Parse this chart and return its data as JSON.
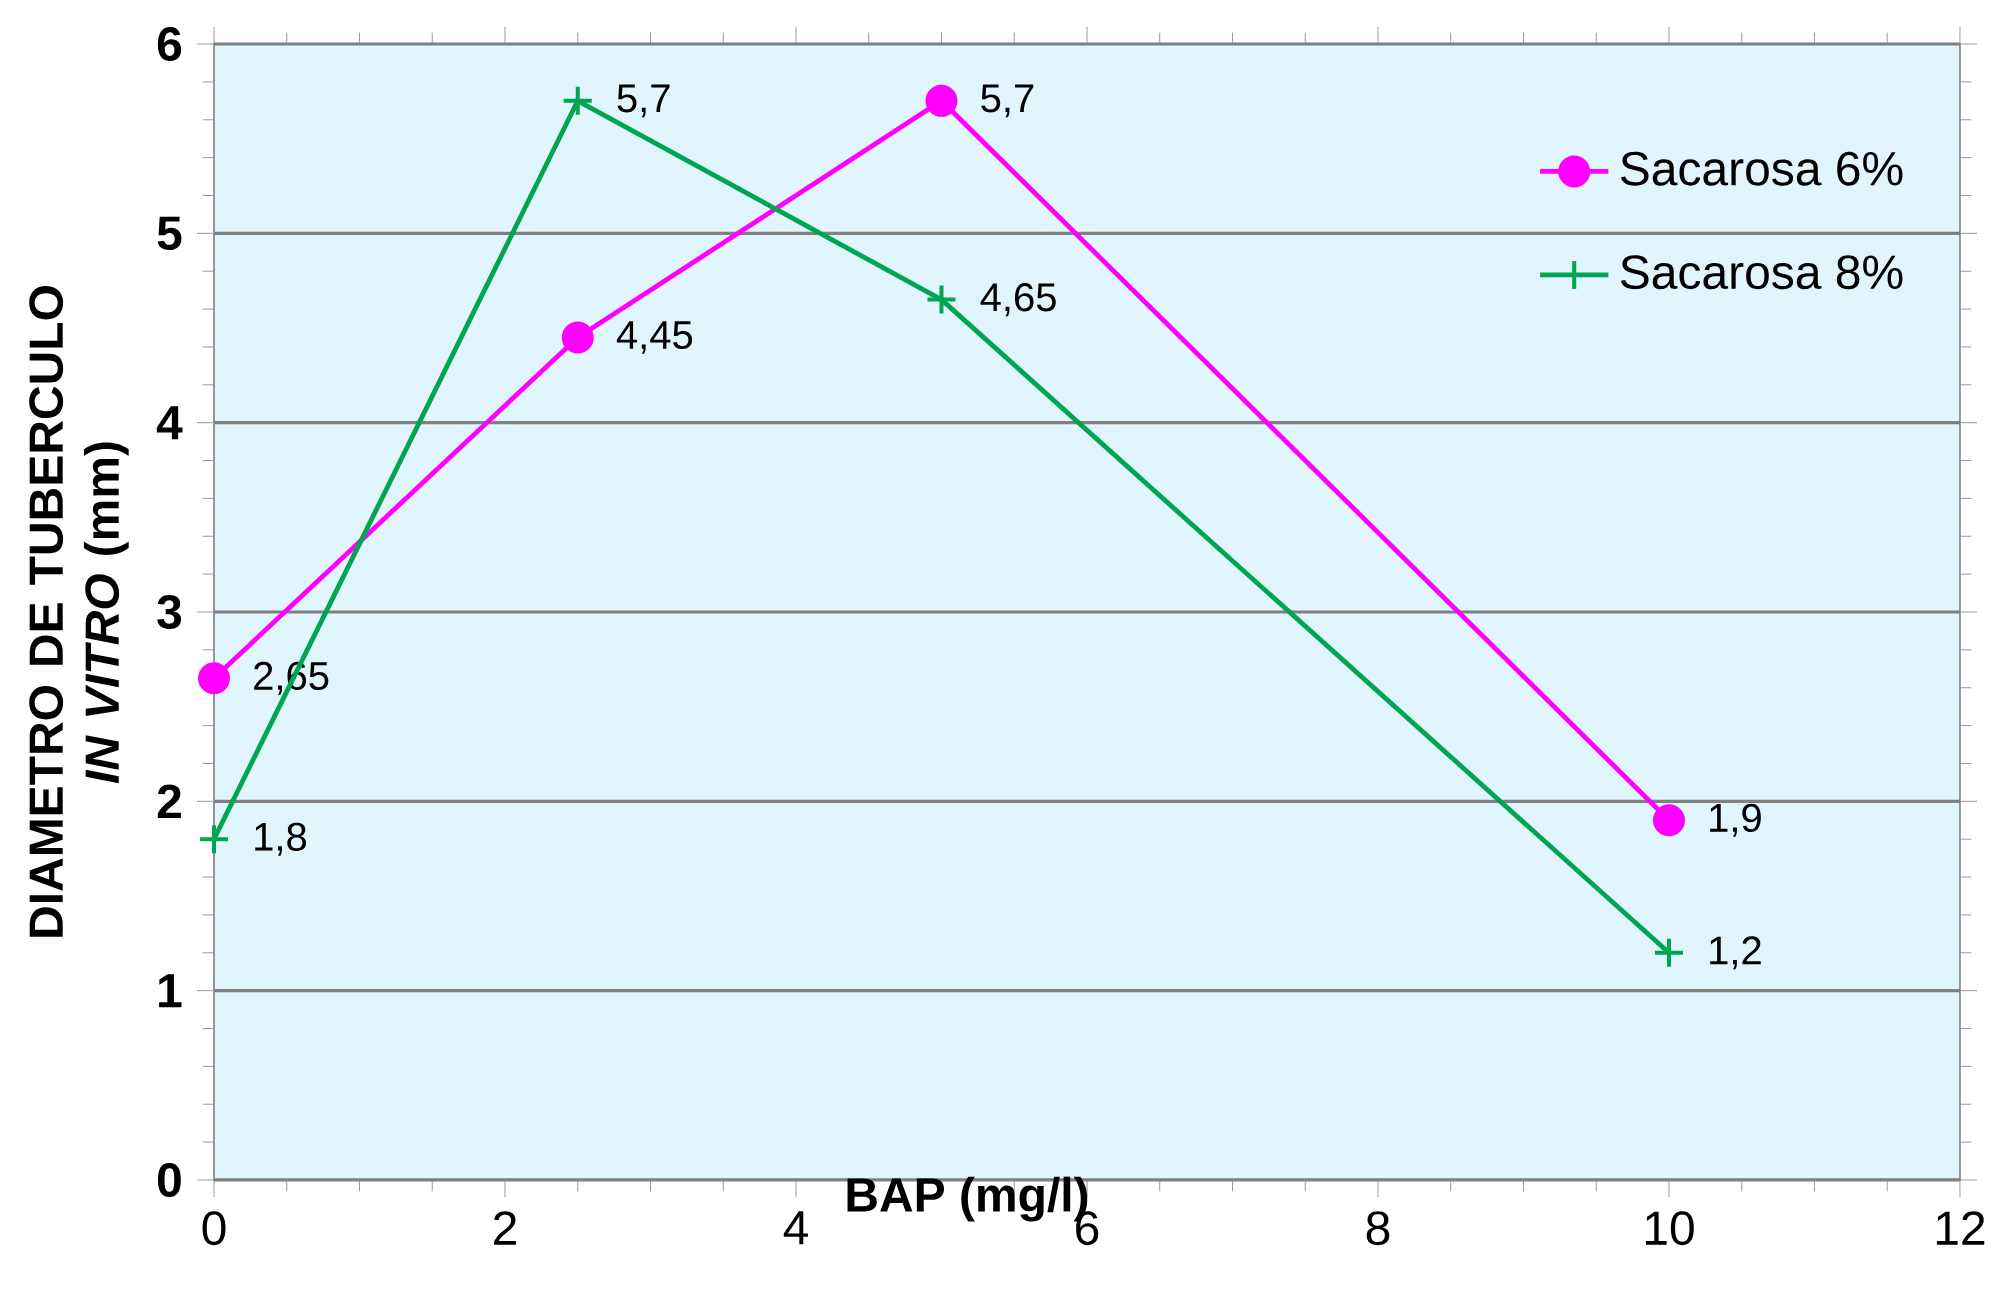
{
  "chart_data": {
    "type": "line",
    "xlabel": "BAP (mg/l)",
    "ylabel": "DIAMETRO DE TUBERCULO *IN VITRO* (mm)",
    "x": [
      0,
      2.5,
      5,
      10
    ],
    "series": [
      {
        "name": "Sacarosa 6%",
        "color": "#ff00ff",
        "marker": "circle",
        "values": [
          2.65,
          4.45,
          5.7,
          1.9
        ],
        "value_labels": [
          "2,65",
          "4,45",
          "5,7",
          "1,9"
        ]
      },
      {
        "name": "Sacarosa 8%",
        "color": "#00a550",
        "marker": "cross",
        "values": [
          1.8,
          5.7,
          4.65,
          1.2
        ],
        "value_labels": [
          "1,8",
          "5,7",
          "4,65",
          "1,2"
        ]
      }
    ],
    "xlim": [
      0,
      12
    ],
    "xticks": [
      0,
      2,
      4,
      6,
      8,
      10,
      12
    ],
    "ylim": [
      0,
      6
    ],
    "yticks": [
      0,
      1,
      2,
      3,
      4,
      5,
      6
    ],
    "grid": "y",
    "legend": "top right",
    "line_style": "solid"
  }
}
